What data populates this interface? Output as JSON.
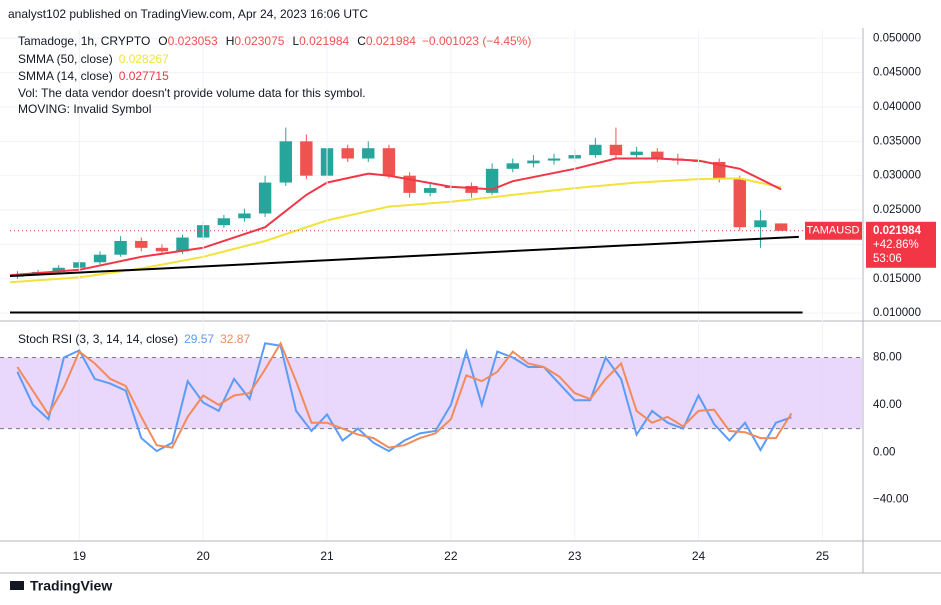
{
  "header": {
    "published": "analyst102 published on TradingView.com, Apr 24, 2023 16:06 UTC",
    "symbol": "Tamadoge, 1h, CRYPTO",
    "ohlc": [
      {
        "label": "O",
        "value": 0.023053
      },
      {
        "label": "H",
        "value": 0.023075
      },
      {
        "label": "L",
        "value": 0.021984
      },
      {
        "label": "C",
        "value": 0.021984
      }
    ],
    "change": "−0.001023 (−4.45%)",
    "notes": [
      "Vol: The data vendor doesn't provide volume data for this symbol.",
      "MOVING: Invalid Symbol"
    ],
    "footer": "TradingView"
  },
  "chart_data": [
    {
      "type": "candlestick",
      "up_color": "#26a69a",
      "down_color": "#ef5350",
      "x": [
        18.5,
        18.667,
        18.833,
        19,
        19.167,
        19.333,
        19.5,
        19.667,
        19.833,
        20,
        20.167,
        20.333,
        20.5,
        20.667,
        20.833,
        21,
        21.167,
        21.333,
        21.5,
        21.667,
        21.833,
        22,
        22.167,
        22.333,
        22.5,
        22.667,
        22.833,
        23,
        23.167,
        23.333,
        23.5,
        23.667,
        23.833,
        24,
        24.167,
        24.333,
        24.5,
        24.667
      ],
      "open": [
        0.0153,
        0.0157,
        0.016,
        0.0166,
        0.0174,
        0.0185,
        0.0205,
        0.0195,
        0.019,
        0.021,
        0.0228,
        0.0238,
        0.0245,
        0.029,
        0.035,
        0.03,
        0.034,
        0.0325,
        0.034,
        0.03,
        0.0275,
        0.0282,
        0.0285,
        0.0275,
        0.031,
        0.0318,
        0.0322,
        0.0325,
        0.033,
        0.0345,
        0.033,
        0.0335,
        0.0325,
        0.0322,
        0.032,
        0.0295,
        0.0225,
        0.023053
      ],
      "high": [
        0.0161,
        0.0163,
        0.017,
        0.0178,
        0.019,
        0.0212,
        0.021,
        0.02,
        0.0214,
        0.0233,
        0.0243,
        0.0252,
        0.03,
        0.037,
        0.036,
        0.035,
        0.0345,
        0.035,
        0.0345,
        0.0305,
        0.029,
        0.0292,
        0.029,
        0.0318,
        0.0325,
        0.033,
        0.0332,
        0.0338,
        0.0355,
        0.037,
        0.0342,
        0.034,
        0.0332,
        0.0328,
        0.0325,
        0.03,
        0.025,
        0.023075
      ],
      "low": [
        0.015,
        0.0154,
        0.0157,
        0.0163,
        0.0171,
        0.0182,
        0.019,
        0.0185,
        0.0186,
        0.0206,
        0.0224,
        0.0233,
        0.024,
        0.0285,
        0.0295,
        0.0295,
        0.032,
        0.032,
        0.0296,
        0.0268,
        0.027,
        0.0278,
        0.0268,
        0.0272,
        0.0305,
        0.0312,
        0.0316,
        0.032,
        0.0326,
        0.0325,
        0.0326,
        0.032,
        0.0316,
        0.0315,
        0.029,
        0.022,
        0.0195,
        0.021984
      ],
      "close": [
        0.0157,
        0.016,
        0.0166,
        0.0174,
        0.0185,
        0.0205,
        0.0195,
        0.019,
        0.021,
        0.0228,
        0.0238,
        0.0245,
        0.029,
        0.035,
        0.03,
        0.034,
        0.0325,
        0.034,
        0.03,
        0.0275,
        0.0282,
        0.0285,
        0.0275,
        0.031,
        0.0318,
        0.0322,
        0.0325,
        0.033,
        0.0345,
        0.033,
        0.0335,
        0.0325,
        0.0322,
        0.032,
        0.0295,
        0.0225,
        0.0235,
        0.021984
      ],
      "series": [
        {
          "name": "SMMA (50, close)",
          "color": "#f2e23a",
          "last_value": 0.028267,
          "x": [
            18.44,
            19,
            19.5,
            20,
            20.5,
            21,
            21.5,
            22,
            22.5,
            23,
            23.5,
            24,
            24.333,
            24.667
          ],
          "values": [
            0.0145,
            0.0152,
            0.0165,
            0.0182,
            0.0205,
            0.0235,
            0.0255,
            0.0262,
            0.0272,
            0.0282,
            0.029,
            0.0295,
            0.0296,
            0.0283
          ]
        },
        {
          "name": "SMMA (14, close)",
          "color": "#f23645",
          "last_value": 0.027715,
          "x": [
            18.44,
            19,
            19.5,
            20,
            20.5,
            20.833,
            21,
            21.333,
            21.5,
            22,
            22.333,
            22.5,
            23,
            23.333,
            23.667,
            24,
            24.333,
            24.667
          ],
          "values": [
            0.0155,
            0.0163,
            0.0182,
            0.0195,
            0.0225,
            0.0272,
            0.029,
            0.0303,
            0.03,
            0.0284,
            0.028,
            0.0292,
            0.031,
            0.0325,
            0.0325,
            0.0322,
            0.031,
            0.028
          ]
        }
      ],
      "lines": [
        {
          "color": "#000000",
          "x": [
            18.44,
            24.81
          ],
          "y": [
            0.0154,
            0.0211
          ]
        },
        {
          "color": "#000000",
          "x": [
            18.44,
            24.84
          ],
          "y": [
            0.0101,
            0.0101
          ]
        }
      ],
      "price_tag": {
        "symbol": "TAMAUSD",
        "price": 0.021984,
        "change": "+42.86%",
        "countdown": "53:06",
        "color": "#f23645"
      },
      "xlim": [
        18.44,
        25.32
      ],
      "xticks": [
        19,
        20,
        21,
        22,
        23,
        24,
        25
      ],
      "ylim": [
        0.009,
        0.0512
      ],
      "yticks": [
        {
          "value": 0.01,
          "label": "0.010000"
        },
        {
          "value": 0.015,
          "label": "0.015000"
        },
        {
          "value": 0.02,
          "label": "0.020000"
        },
        {
          "value": 0.025,
          "label": "0.025000"
        },
        {
          "value": 0.03,
          "label": "0.030000"
        },
        {
          "value": 0.035,
          "label": "0.035000"
        },
        {
          "value": 0.04,
          "label": "0.040000"
        },
        {
          "value": 0.045,
          "label": "0.045000"
        },
        {
          "value": 0.05,
          "label": "0.050000"
        }
      ],
      "grid": true
    },
    {
      "type": "line",
      "title": "Stoch RSI (3, 3, 14, 14, close)",
      "band": [
        20,
        80
      ],
      "band_color": "#e1c6fb",
      "series": [
        {
          "color": "#5b9cf6",
          "last_value": 29.57,
          "x": [
            18.5,
            18.625,
            18.75,
            18.875,
            19,
            19.125,
            19.25,
            19.375,
            19.5,
            19.625,
            19.75,
            19.875,
            20,
            20.125,
            20.25,
            20.375,
            20.5,
            20.625,
            20.75,
            20.875,
            21,
            21.125,
            21.25,
            21.375,
            21.5,
            21.625,
            21.75,
            21.875,
            22,
            22.125,
            22.25,
            22.375,
            22.5,
            22.625,
            22.75,
            22.875,
            23,
            23.125,
            23.25,
            23.375,
            23.5,
            23.625,
            23.75,
            23.875,
            24,
            24.125,
            24.25,
            24.375,
            24.5,
            24.625,
            24.75
          ],
          "values": [
            68,
            40,
            28,
            80,
            86,
            62,
            58,
            52,
            12,
            1,
            8,
            60,
            42,
            35,
            62,
            45,
            92,
            90,
            35,
            18,
            32,
            10,
            20,
            8,
            1,
            10,
            16,
            18,
            40,
            85,
            40,
            85,
            80,
            72,
            72,
            58,
            44,
            44,
            80,
            62,
            15,
            35,
            25,
            20,
            48,
            24,
            10,
            25,
            2,
            25,
            29.57
          ]
        },
        {
          "color": "#f28b5b",
          "last_value": 32.87,
          "x": [
            18.5,
            18.625,
            18.75,
            18.875,
            19,
            19.125,
            19.25,
            19.375,
            19.5,
            19.625,
            19.75,
            19.875,
            20,
            20.125,
            20.25,
            20.375,
            20.5,
            20.625,
            20.75,
            20.875,
            21,
            21.125,
            21.25,
            21.375,
            21.5,
            21.625,
            21.75,
            21.875,
            22,
            22.125,
            22.25,
            22.375,
            22.5,
            22.625,
            22.75,
            22.875,
            23,
            23.125,
            23.25,
            23.375,
            23.5,
            23.625,
            23.75,
            23.875,
            24,
            24.125,
            24.25,
            24.375,
            24.5,
            24.625,
            24.75
          ],
          "values": [
            72,
            52,
            32,
            55,
            85,
            75,
            62,
            56,
            30,
            6,
            4,
            30,
            48,
            40,
            48,
            50,
            70,
            92,
            60,
            25,
            25,
            20,
            15,
            12,
            4,
            6,
            12,
            16,
            28,
            65,
            60,
            68,
            85,
            75,
            72,
            64,
            50,
            45,
            62,
            75,
            35,
            25,
            30,
            22,
            35,
            36,
            18,
            17,
            12,
            12,
            32.87
          ]
        }
      ],
      "xlim": [
        18.44,
        25.32
      ],
      "ylim": [
        -74,
        110
      ],
      "yticks": [
        {
          "value": 80,
          "label": "80.00"
        },
        {
          "value": 40,
          "label": "40.00"
        },
        {
          "value": 0,
          "label": "0.00"
        },
        {
          "value": -40,
          "label": "−40.00"
        }
      ]
    }
  ]
}
